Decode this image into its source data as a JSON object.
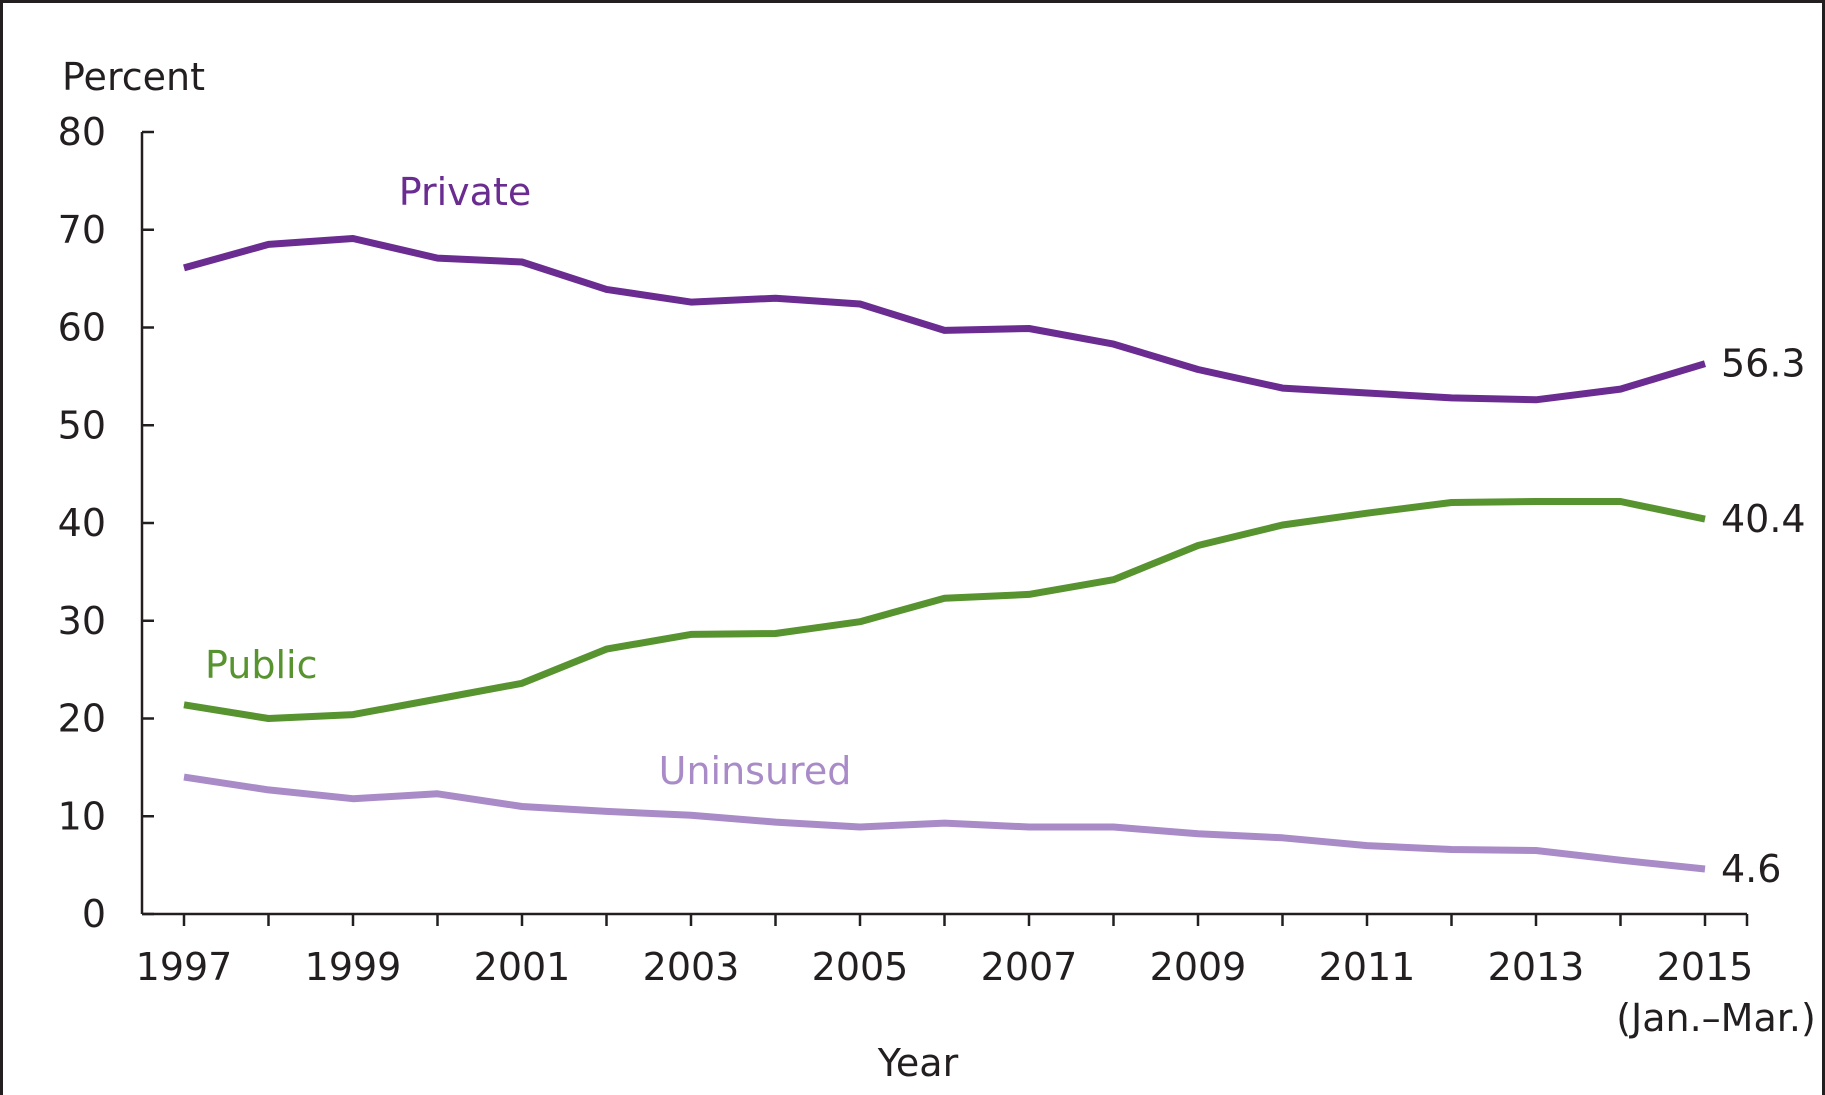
{
  "chart_data": {
    "type": "line",
    "ylabel": "Percent",
    "xlabel": "Year",
    "ylim": [
      0,
      80
    ],
    "yticks": [
      0,
      10,
      20,
      30,
      40,
      50,
      60,
      70,
      80
    ],
    "xlim": [
      1997,
      2015
    ],
    "xticks": [
      {
        "value": 1997,
        "label": "1997"
      },
      {
        "value": 1999,
        "label": "1999"
      },
      {
        "value": 2001,
        "label": "2001"
      },
      {
        "value": 2003,
        "label": "2003"
      },
      {
        "value": 2005,
        "label": "2005"
      },
      {
        "value": 2007,
        "label": "2007"
      },
      {
        "value": 2009,
        "label": "2009"
      },
      {
        "value": 2011,
        "label": "2011"
      },
      {
        "value": 2013,
        "label": "2013"
      },
      {
        "value": 2015,
        "label": "2015"
      }
    ],
    "xtick_sublabel": "(Jan.–Mar.)",
    "x": [
      1997,
      1998,
      1999,
      2000,
      2001,
      2002,
      2003,
      2004,
      2005,
      2006,
      2007,
      2008,
      2009,
      2010,
      2011,
      2012,
      2013,
      2014,
      2015
    ],
    "grid": false,
    "series": [
      {
        "name": "Private",
        "color": "#6a2c91",
        "values": [
          66.1,
          68.5,
          69.1,
          67.1,
          66.7,
          63.9,
          62.6,
          63.0,
          62.4,
          59.7,
          59.9,
          58.3,
          55.7,
          53.8,
          53.3,
          52.8,
          52.6,
          53.7,
          56.3
        ],
        "end_label": "56.3"
      },
      {
        "name": "Public",
        "color": "#57932f",
        "values": [
          21.4,
          20.0,
          20.4,
          22.0,
          23.6,
          27.1,
          28.6,
          28.7,
          29.9,
          32.3,
          32.7,
          34.2,
          37.7,
          39.8,
          41.0,
          42.1,
          42.2,
          42.2,
          40.4
        ],
        "end_label": "40.4"
      },
      {
        "name": "Uninsured",
        "color": "#a98bc8",
        "values": [
          14.0,
          12.7,
          11.8,
          12.3,
          11.0,
          10.5,
          10.1,
          9.4,
          8.9,
          9.3,
          8.9,
          8.9,
          8.2,
          7.8,
          7.0,
          6.6,
          6.5,
          5.5,
          4.6
        ],
        "end_label": "4.6"
      }
    ]
  }
}
